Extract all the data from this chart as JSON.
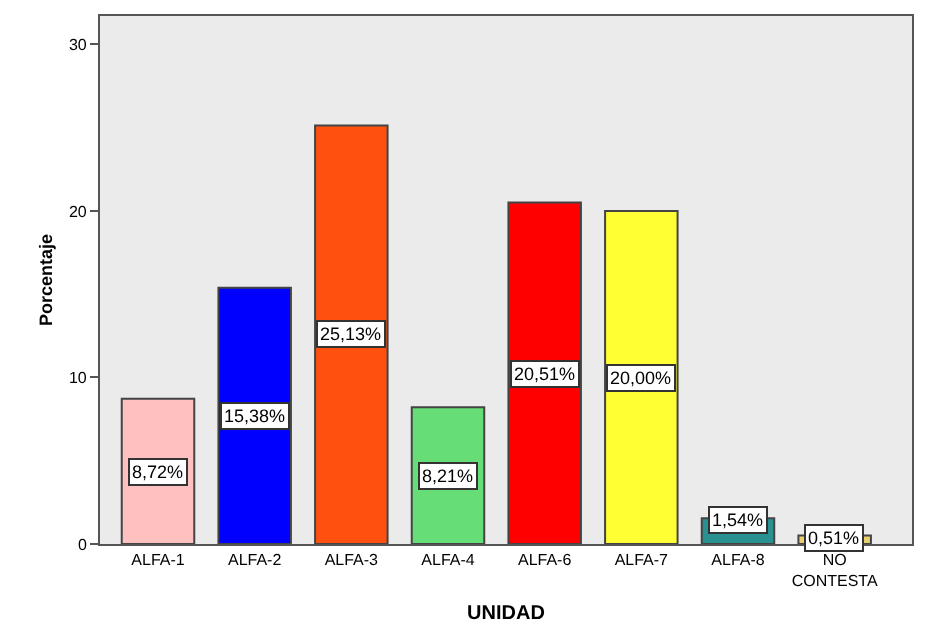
{
  "chart_data": {
    "type": "bar",
    "xlabel": "UNIDAD",
    "ylabel": "Porcentaje",
    "categories": [
      "ALFA-1",
      "ALFA-2",
      "ALFA-3",
      "ALFA-4",
      "ALFA-6",
      "ALFA-7",
      "ALFA-8",
      "NO CONTESTA"
    ],
    "values": [
      8.72,
      15.38,
      25.13,
      8.21,
      20.51,
      20.0,
      1.54,
      0.51
    ],
    "value_labels": [
      "8,72%",
      "15,38%",
      "25,13%",
      "8,21%",
      "20,51%",
      "20,00%",
      "1,54%",
      "0,51%"
    ],
    "colors": [
      "#ffc0c0",
      "#0000ff",
      "#ff5010",
      "#66dd77",
      "#ff0000",
      "#ffff33",
      "#2a9090",
      "#e8d070"
    ],
    "ylim": [
      0,
      31.7
    ],
    "yticks": [
      0,
      10,
      20,
      30
    ],
    "grid": false,
    "legend": false
  }
}
